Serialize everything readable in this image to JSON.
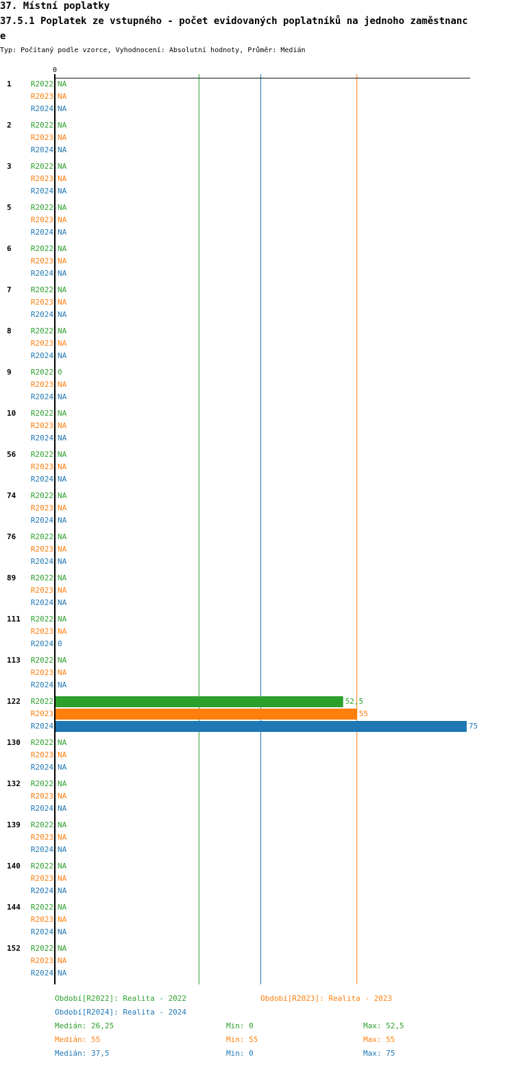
{
  "chart_data": {
    "type": "bar",
    "title": "37. Místní poplatky",
    "subtitle_lines": [
      "37.5.1 Poplatek ze vstupného - počet evidovaných poplatníků na jednoho zaměstnanc",
      "e"
    ],
    "info": "Typ: Počítaný podle vzorce, Vyhodnocení: Absolutní hodnoty, Průměr: Medián",
    "categories": [
      "1",
      "2",
      "3",
      "5",
      "6",
      "7",
      "8",
      "9",
      "10",
      "56",
      "74",
      "76",
      "89",
      "111",
      "113",
      "122",
      "130",
      "132",
      "139",
      "140",
      "144",
      "152"
    ],
    "xlim": [
      0,
      75
    ],
    "xticks": [
      0
    ],
    "series": [
      {
        "name": "R2022",
        "color": "#2ca02c",
        "legend": "Období[R2022]: Realita - 2022",
        "values": [
          null,
          null,
          null,
          null,
          null,
          null,
          null,
          0,
          null,
          null,
          null,
          null,
          null,
          null,
          null,
          52.5,
          null,
          null,
          null,
          null,
          null,
          null
        ],
        "value_labels": [
          "NA",
          "NA",
          "NA",
          "NA",
          "NA",
          "NA",
          "NA",
          "0",
          "NA",
          "NA",
          "NA",
          "NA",
          "NA",
          "NA",
          "NA",
          "52,5",
          "NA",
          "NA",
          "NA",
          "NA",
          "NA",
          "NA"
        ],
        "median": 26.25,
        "median_label": "Medián: 26,25",
        "min_label": "Min: 0",
        "max_label": "Max: 52,5"
      },
      {
        "name": "R2023",
        "color": "#ff7f0e",
        "legend": "Období[R2023]: Realita - 2023",
        "values": [
          null,
          null,
          null,
          null,
          null,
          null,
          null,
          null,
          null,
          null,
          null,
          null,
          null,
          null,
          null,
          55,
          null,
          null,
          null,
          null,
          null,
          null
        ],
        "value_labels": [
          "NA",
          "NA",
          "NA",
          "NA",
          "NA",
          "NA",
          "NA",
          "NA",
          "NA",
          "NA",
          "NA",
          "NA",
          "NA",
          "NA",
          "NA",
          "55",
          "NA",
          "NA",
          "NA",
          "NA",
          "NA",
          "NA"
        ],
        "median": 55,
        "median_label": "Medián: 55",
        "min_label": "Min: 55",
        "max_label": "Max: 55"
      },
      {
        "name": "R2024",
        "color": "#1f77b4",
        "legend": "Období[R2024]: Realita - 2024",
        "values": [
          null,
          null,
          null,
          null,
          null,
          null,
          null,
          null,
          null,
          null,
          null,
          null,
          null,
          0,
          null,
          75,
          null,
          null,
          null,
          null,
          null,
          null
        ],
        "value_labels": [
          "NA",
          "NA",
          "NA",
          "NA",
          "NA",
          "NA",
          "NA",
          "NA",
          "NA",
          "NA",
          "NA",
          "NA",
          "NA",
          "0",
          "NA",
          "75",
          "NA",
          "NA",
          "NA",
          "NA",
          "NA",
          "NA"
        ],
        "median": 37.5,
        "median_label": "Medián: 37,5",
        "min_label": "Min: 0",
        "max_label": "Max: 75"
      }
    ]
  }
}
